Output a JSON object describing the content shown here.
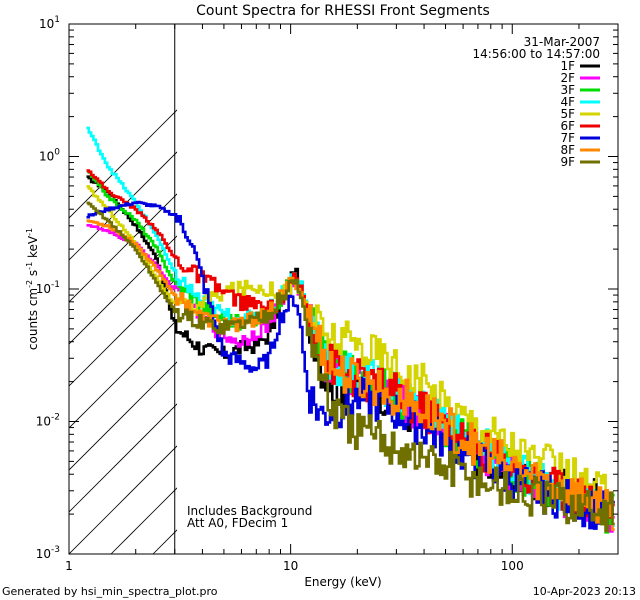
{
  "chart_data": {
    "type": "line",
    "title": "Count Spectra for RHESSI Front Segments",
    "xlabel": "Energy (keV)",
    "ylabel_main": "counts cm",
    "ylabel_sup1": "-2",
    "ylabel_mid": " s",
    "ylabel_sup2": "-1",
    "ylabel_end": " keV",
    "ylabel_sup3": "-1",
    "x_scale": "log",
    "y_scale": "log",
    "xlim": [
      1,
      300
    ],
    "ylim": [
      0.001,
      10
    ],
    "x_ticks": [
      {
        "value": 1,
        "label": "1"
      },
      {
        "value": 10,
        "label": "10"
      },
      {
        "value": 100,
        "label": "100"
      }
    ],
    "y_ticks": [
      {
        "value": 10,
        "base": "10",
        "exp": "1"
      },
      {
        "value": 1,
        "base": "10",
        "exp": "0"
      },
      {
        "value": 0.1,
        "base": "10",
        "exp": "-1"
      },
      {
        "value": 0.01,
        "base": "10",
        "exp": "-2"
      },
      {
        "value": 0.001,
        "base": "10",
        "exp": "-3"
      }
    ],
    "hatched_region_end_kev": 3,
    "date": "31-Mar-2007",
    "time_range": "14:56:00 to 14:57:00",
    "annotation_line1": "Includes Background",
    "annotation_line2": "Att A0, FDecim 1",
    "footer_left": "Generated by hsi_min_spectra_plot.pro",
    "footer_right": "10-Apr-2023 20:13",
    "series": [
      {
        "name": "1F",
        "color": "#000000",
        "x": [
          1.2,
          1.5,
          2,
          2.5,
          3,
          3.5,
          4,
          5,
          6,
          7,
          8,
          9,
          10,
          10.5,
          11,
          11.5,
          12,
          13,
          14,
          15,
          17,
          20,
          25,
          30,
          40,
          50,
          60,
          80,
          100,
          120,
          150,
          200,
          250,
          290
        ],
        "y": [
          0.7,
          0.55,
          0.3,
          0.17,
          0.052,
          0.042,
          0.035,
          0.032,
          0.036,
          0.038,
          0.045,
          0.075,
          0.12,
          0.13,
          0.11,
          0.08,
          0.06,
          0.04,
          0.024,
          0.02,
          0.018,
          0.018,
          0.017,
          0.014,
          0.0095,
          0.008,
          0.0066,
          0.005,
          0.004,
          0.0035,
          0.0032,
          0.0028,
          0.0025,
          0.0023
        ]
      },
      {
        "name": "2F",
        "color": "#ff00ff",
        "x": [
          1.2,
          1.5,
          2,
          2.5,
          3,
          3.5,
          4,
          5,
          6,
          7,
          8,
          9,
          10,
          10.5,
          11,
          11.5,
          12,
          13,
          14,
          15,
          17,
          20,
          25,
          30,
          40,
          50,
          60,
          80,
          100,
          120,
          150,
          200,
          250,
          290
        ],
        "y": [
          0.31,
          0.27,
          0.22,
          0.15,
          0.095,
          0.07,
          0.06,
          0.045,
          0.04,
          0.048,
          0.055,
          0.075,
          0.1,
          0.115,
          0.1,
          0.08,
          0.06,
          0.045,
          0.032,
          0.026,
          0.022,
          0.02,
          0.018,
          0.015,
          0.012,
          0.0092,
          0.0072,
          0.0052,
          0.0042,
          0.0034,
          0.003,
          0.0024,
          0.0019,
          0.0015
        ]
      },
      {
        "name": "3F",
        "color": "#00dd00",
        "x": [
          1.2,
          1.5,
          2,
          2.5,
          3,
          3.5,
          4,
          5,
          6,
          7,
          8,
          9,
          10,
          10.5,
          11,
          11.5,
          12,
          13,
          14,
          15,
          17,
          20,
          25,
          30,
          40,
          50,
          60,
          80,
          100,
          120,
          150,
          200,
          250,
          290
        ],
        "y": [
          0.8,
          0.5,
          0.33,
          0.2,
          0.11,
          0.09,
          0.075,
          0.06,
          0.055,
          0.06,
          0.065,
          0.085,
          0.11,
          0.125,
          0.11,
          0.085,
          0.065,
          0.047,
          0.034,
          0.028,
          0.024,
          0.021,
          0.019,
          0.016,
          0.012,
          0.0095,
          0.0074,
          0.0056,
          0.0044,
          0.0037,
          0.0032,
          0.0026,
          0.0022,
          0.0019
        ]
      },
      {
        "name": "4F",
        "color": "#00ffff",
        "x": [
          1.2,
          1.5,
          2,
          2.5,
          3,
          3.5,
          4,
          5,
          6,
          7,
          8,
          9,
          10,
          10.5,
          11,
          11.5,
          12,
          13,
          14,
          15,
          17,
          20,
          25,
          30,
          40,
          50,
          60,
          80,
          100,
          120,
          150,
          200,
          250,
          290
        ],
        "y": [
          1.7,
          0.85,
          0.45,
          0.25,
          0.13,
          0.1,
          0.08,
          0.064,
          0.058,
          0.062,
          0.07,
          0.09,
          0.115,
          0.13,
          0.115,
          0.088,
          0.068,
          0.05,
          0.036,
          0.03,
          0.025,
          0.022,
          0.02,
          0.017,
          0.013,
          0.01,
          0.0078,
          0.0058,
          0.0046,
          0.0038,
          0.0033,
          0.0027,
          0.0023,
          0.002
        ]
      },
      {
        "name": "5F",
        "color": "#d4d400",
        "x": [
          1.2,
          1.5,
          2,
          2.5,
          3,
          3.5,
          4,
          5,
          6,
          7,
          8,
          9,
          10,
          10.5,
          11,
          11.5,
          12,
          13,
          14,
          15,
          17,
          20,
          25,
          30,
          40,
          50,
          60,
          80,
          100,
          120,
          150,
          200,
          250,
          290
        ],
        "y": [
          0.6,
          0.4,
          0.22,
          0.12,
          0.075,
          0.072,
          0.08,
          0.095,
          0.1,
          0.105,
          0.1,
          0.095,
          0.1,
          0.11,
          0.1,
          0.085,
          0.07,
          0.058,
          0.047,
          0.042,
          0.04,
          0.038,
          0.032,
          0.026,
          0.019,
          0.014,
          0.011,
          0.0085,
          0.0066,
          0.0054,
          0.0045,
          0.0035,
          0.0029,
          0.0025
        ]
      },
      {
        "name": "6F",
        "color": "#ee0000",
        "x": [
          1.2,
          1.5,
          2,
          2.5,
          3,
          3.5,
          4,
          5,
          6,
          7,
          8,
          9,
          10,
          10.5,
          11,
          11.5,
          12,
          13,
          14,
          15,
          17,
          20,
          25,
          30,
          40,
          50,
          60,
          80,
          100,
          120,
          150,
          200,
          250,
          290
        ],
        "y": [
          0.82,
          0.55,
          0.4,
          0.28,
          0.17,
          0.14,
          0.12,
          0.095,
          0.08,
          0.075,
          0.07,
          0.08,
          0.1,
          0.12,
          0.11,
          0.085,
          0.065,
          0.046,
          0.034,
          0.028,
          0.024,
          0.021,
          0.019,
          0.016,
          0.012,
          0.0095,
          0.0075,
          0.0057,
          0.0045,
          0.0038,
          0.0033,
          0.0028,
          0.0024,
          0.0021
        ]
      },
      {
        "name": "7F",
        "color": "#0000dd",
        "x": [
          1.2,
          1.5,
          2,
          2.5,
          3,
          3.5,
          4,
          5,
          6,
          7,
          8,
          9,
          10,
          10.5,
          11,
          11.5,
          12,
          13,
          14,
          15,
          17,
          20,
          25,
          30,
          40,
          50,
          60,
          80,
          100,
          120,
          150,
          200,
          250,
          290
        ],
        "y": [
          0.35,
          0.4,
          0.45,
          0.42,
          0.36,
          0.25,
          0.12,
          0.032,
          0.028,
          0.025,
          0.03,
          0.06,
          0.08,
          0.085,
          0.065,
          0.03,
          0.018,
          0.013,
          0.011,
          0.012,
          0.013,
          0.015,
          0.014,
          0.012,
          0.009,
          0.0072,
          0.0058,
          0.0045,
          0.0037,
          0.0031,
          0.0028,
          0.0024,
          0.0021,
          0.0019
        ]
      },
      {
        "name": "8F",
        "color": "#ff8800",
        "x": [
          1.2,
          1.5,
          2,
          2.5,
          3,
          3.5,
          4,
          5,
          6,
          7,
          8,
          9,
          10,
          10.5,
          11,
          11.5,
          12,
          13,
          14,
          15,
          17,
          20,
          25,
          30,
          40,
          50,
          60,
          80,
          100,
          120,
          150,
          200,
          250,
          290
        ],
        "y": [
          0.33,
          0.3,
          0.22,
          0.14,
          0.09,
          0.075,
          0.06,
          0.055,
          0.055,
          0.06,
          0.065,
          0.085,
          0.11,
          0.12,
          0.1,
          0.08,
          0.062,
          0.046,
          0.034,
          0.027,
          0.023,
          0.02,
          0.018,
          0.016,
          0.012,
          0.0095,
          0.0075,
          0.0056,
          0.0045,
          0.0038,
          0.0033,
          0.0028,
          0.0024,
          0.0021
        ]
      },
      {
        "name": "9F",
        "color": "#707000",
        "x": [
          1.2,
          1.5,
          2,
          2.5,
          3,
          3.5,
          4,
          5,
          6,
          7,
          8,
          9,
          10,
          10.5,
          11,
          11.5,
          12,
          13,
          14,
          15,
          17,
          20,
          25,
          30,
          40,
          50,
          60,
          80,
          100,
          120,
          150,
          200,
          250,
          290
        ],
        "y": [
          0.45,
          0.33,
          0.2,
          0.11,
          0.068,
          0.06,
          0.055,
          0.052,
          0.055,
          0.06,
          0.065,
          0.085,
          0.105,
          0.115,
          0.095,
          0.07,
          0.05,
          0.032,
          0.02,
          0.014,
          0.01,
          0.0085,
          0.0075,
          0.0065,
          0.0052,
          0.0045,
          0.004,
          0.0034,
          0.003,
          0.0027,
          0.0025,
          0.0023,
          0.0021,
          0.002
        ]
      }
    ]
  }
}
